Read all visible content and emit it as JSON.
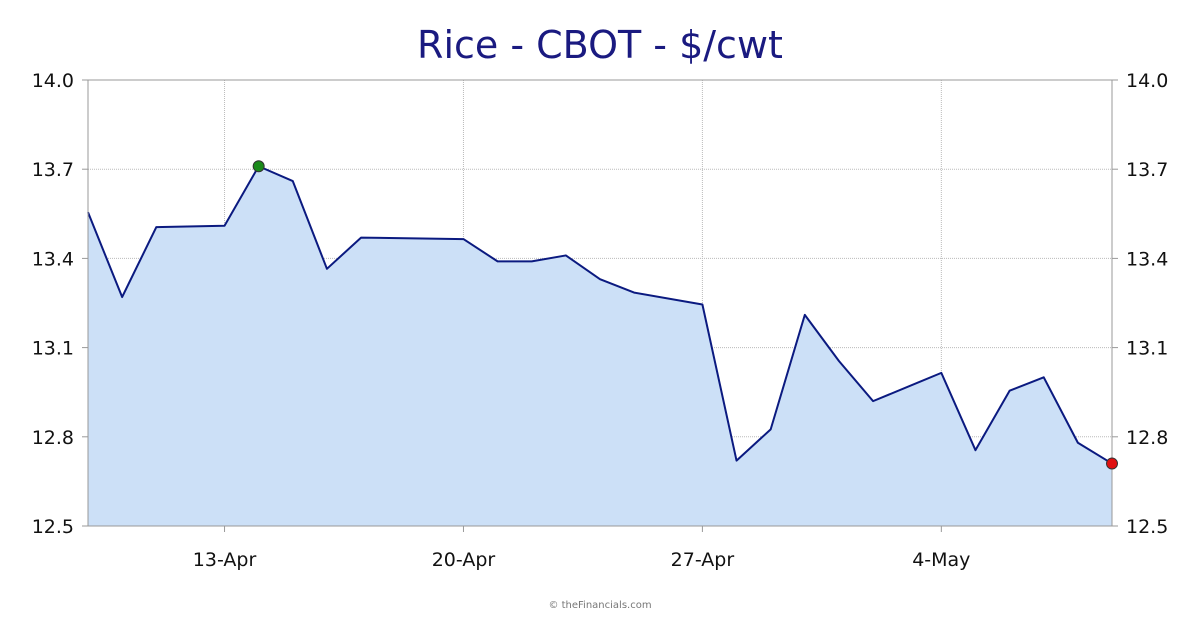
{
  "chart_data": {
    "type": "area",
    "title": "Rice - CBOT - $/cwt",
    "xlabel": "",
    "ylabel": "",
    "ylim": [
      12.5,
      14.0
    ],
    "y_ticks": [
      "14.0",
      "13.7",
      "13.4",
      "13.1",
      "12.8",
      "12.5"
    ],
    "x_tick_labels": [
      "13-Apr",
      "20-Apr",
      "27-Apr",
      "4-May"
    ],
    "grid": true,
    "right_axis": true,
    "series": [
      {
        "x": [
          "2020-04-09",
          "2020-04-10",
          "2020-04-11",
          "2020-04-13",
          "2020-04-14",
          "2020-04-15",
          "2020-04-16",
          "2020-04-17",
          "2020-04-20",
          "2020-04-21",
          "2020-04-22",
          "2020-04-23",
          "2020-04-24",
          "2020-04-25",
          "2020-04-27",
          "2020-04-28",
          "2020-04-29",
          "2020-04-30",
          "2020-05-01",
          "2020-05-02",
          "2020-05-04",
          "2020-05-05",
          "2020-05-06",
          "2020-05-07",
          "2020-05-08",
          "2020-05-09"
        ],
        "values": [
          13.555,
          13.27,
          13.505,
          13.51,
          13.71,
          13.66,
          13.365,
          13.47,
          13.465,
          13.39,
          13.39,
          13.41,
          13.33,
          13.285,
          13.245,
          12.72,
          12.825,
          13.21,
          13.055,
          12.92,
          13.015,
          12.755,
          12.955,
          13.0,
          12.78,
          12.71
        ]
      }
    ],
    "markers": {
      "high": {
        "index": 4,
        "color": "#1a8a1a"
      },
      "low": {
        "index": 25,
        "color": "#e01010"
      }
    },
    "colors": {
      "line": "#0b1a80",
      "fill": "#cce0f7",
      "title": "#1a1a80",
      "grid": "#bbbbbb",
      "axis": "#999999"
    }
  },
  "credit": "© theFinancials.com"
}
